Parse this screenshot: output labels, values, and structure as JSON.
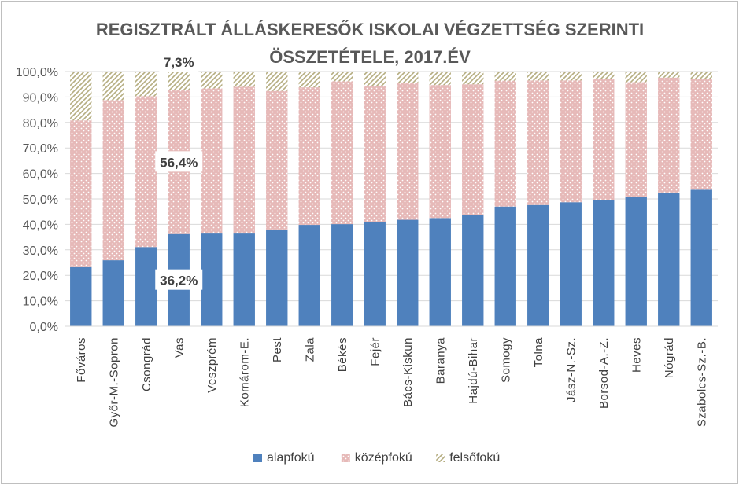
{
  "chart_data": {
    "type": "bar",
    "stacked": true,
    "title_lines": [
      "REGISZTRÁLT ÁLLÁSKERESŐK ISKOLAI VÉGZETTSÉG SZERINTI",
      "ÖSSZETÉTELE, 2017.ÉV"
    ],
    "ylim": [
      0,
      100
    ],
    "yticks": [
      "0,0%",
      "10,0%",
      "20,0%",
      "30,0%",
      "40,0%",
      "50,0%",
      "60,0%",
      "70,0%",
      "80,0%",
      "90,0%",
      "100,0%"
    ],
    "grid": true,
    "legend_position": "bottom",
    "categories": [
      "Főváros",
      "Győr-M.-Sopron",
      "Csongrád",
      "Vas",
      "Veszprém",
      "Komárom-E.",
      "Pest",
      "Zala",
      "Békés",
      "Fejér",
      "Bács-Kiskun",
      "Baranya",
      "Hajdú-Bihar",
      "Somogy",
      "Tolna",
      "Jász-N.-Sz.",
      "Borsod-A.-Z.",
      "Heves",
      "Nógrád",
      "Szabolcs-Sz.-B."
    ],
    "series": [
      {
        "name": "alapfokú",
        "color": "#4f81bd",
        "pattern": "solid",
        "values": [
          23.2,
          25.9,
          31.1,
          36.2,
          36.4,
          36.4,
          38.0,
          39.8,
          40.1,
          40.8,
          41.8,
          42.5,
          43.8,
          47.0,
          47.6,
          48.7,
          49.5,
          50.8,
          52.5,
          53.6
        ]
      },
      {
        "name": "középfokú",
        "color": "#e6b9b8",
        "pattern": "dots",
        "values": [
          57.6,
          62.9,
          59.2,
          56.4,
          57.0,
          57.6,
          54.4,
          54.0,
          56.1,
          53.6,
          53.6,
          52.2,
          51.2,
          49.4,
          48.9,
          47.8,
          47.5,
          45.0,
          45.1,
          43.4
        ]
      },
      {
        "name": "felsőfokú",
        "color": "#c4bd97",
        "pattern": "diagonal",
        "values": [
          19.2,
          11.2,
          9.7,
          7.3,
          6.6,
          6.0,
          7.6,
          6.2,
          3.8,
          5.6,
          4.6,
          5.3,
          5.0,
          3.6,
          3.5,
          3.5,
          3.0,
          4.2,
          2.4,
          3.0
        ]
      }
    ],
    "annotations": [
      {
        "text": "7,3%",
        "category": "Vas",
        "series": "felsőfokú"
      },
      {
        "text": "56,4%",
        "category": "Vas",
        "series": "középfokú"
      },
      {
        "text": "36,2%",
        "category": "Vas",
        "series": "alapfokú"
      }
    ]
  }
}
